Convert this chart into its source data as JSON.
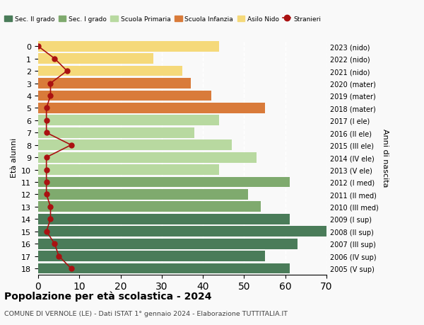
{
  "ages": [
    18,
    17,
    16,
    15,
    14,
    13,
    12,
    11,
    10,
    9,
    8,
    7,
    6,
    5,
    4,
    3,
    2,
    1,
    0
  ],
  "bar_values": [
    61,
    55,
    63,
    70,
    61,
    54,
    51,
    61,
    44,
    53,
    47,
    38,
    44,
    55,
    42,
    37,
    35,
    28,
    44
  ],
  "stranieri_values": [
    8,
    5,
    4,
    2,
    3,
    3,
    2,
    2,
    2,
    2,
    8,
    2,
    2,
    2,
    3,
    3,
    7,
    4,
    0
  ],
  "right_labels": [
    "2005 (V sup)",
    "2006 (IV sup)",
    "2007 (III sup)",
    "2008 (II sup)",
    "2009 (I sup)",
    "2010 (III med)",
    "2011 (II med)",
    "2012 (I med)",
    "2013 (V ele)",
    "2014 (IV ele)",
    "2015 (III ele)",
    "2016 (II ele)",
    "2017 (I ele)",
    "2018 (mater)",
    "2019 (mater)",
    "2020 (mater)",
    "2021 (nido)",
    "2022 (nido)",
    "2023 (nido)"
  ],
  "bar_colors": [
    "#4a7c59",
    "#4a7c59",
    "#4a7c59",
    "#4a7c59",
    "#4a7c59",
    "#7faa6e",
    "#7faa6e",
    "#7faa6e",
    "#b8d9a0",
    "#b8d9a0",
    "#b8d9a0",
    "#b8d9a0",
    "#b8d9a0",
    "#d97b3a",
    "#d97b3a",
    "#d97b3a",
    "#f5d97a",
    "#f5d97a",
    "#f5d97a"
  ],
  "color_sec2": "#4a7c59",
  "color_sec1": "#7faa6e",
  "color_prim": "#b8d9a0",
  "color_infanzia": "#d97b3a",
  "color_nido": "#f5d97a",
  "color_stranieri": "#aa1111",
  "title": "Popolazione per età scolastica - 2024",
  "subtitle": "COMUNE DI VERNOLE (LE) - Dati ISTAT 1° gennaio 2024 - Elaborazione TUTTITALIA.IT",
  "ylabel_left": "Età alunni",
  "ylabel_right": "Anni di nascita",
  "xlabel": "",
  "xlim": [
    0,
    70
  ],
  "bg_color": "#f9f9f9",
  "legend_labels": [
    "Sec. II grado",
    "Sec. I grado",
    "Scuola Primaria",
    "Scuola Infanzia",
    "Asilo Nido",
    "Stranieri"
  ]
}
